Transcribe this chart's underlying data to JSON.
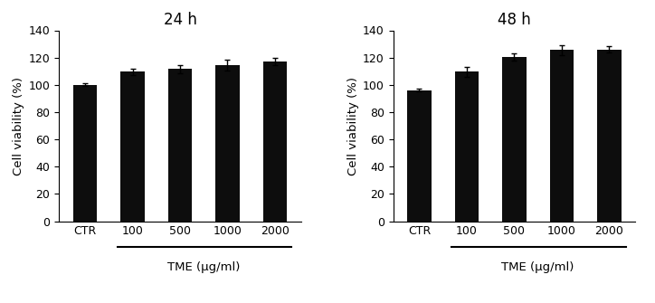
{
  "panel1": {
    "title": "24 h",
    "categories": [
      "CTR",
      "100",
      "500",
      "1000",
      "2000"
    ],
    "values": [
      100.0,
      109.5,
      111.5,
      114.5,
      117.0
    ],
    "errors": [
      1.0,
      2.5,
      3.0,
      4.0,
      2.5
    ],
    "bar_color": "#0d0d0d",
    "ylabel": "Cell viability (%)",
    "xlabel_tme": "TME (μg/ml)",
    "ylim": [
      0,
      140
    ],
    "yticks": [
      0,
      20,
      40,
      60,
      80,
      100,
      120,
      140
    ]
  },
  "panel2": {
    "title": "48 h",
    "categories": [
      "CTR",
      "100",
      "500",
      "1000",
      "2000"
    ],
    "values": [
      96.0,
      109.5,
      120.5,
      125.5,
      126.0
    ],
    "errors": [
      1.0,
      3.5,
      2.5,
      3.5,
      2.5
    ],
    "bar_color": "#0d0d0d",
    "ylabel": "Cell viability (%)",
    "xlabel_tme": "TME (μg/ml)",
    "ylim": [
      0,
      140
    ],
    "yticks": [
      0,
      20,
      40,
      60,
      80,
      100,
      120,
      140
    ]
  },
  "fig_width": 7.24,
  "fig_height": 3.35,
  "dpi": 100,
  "bar_width": 0.5,
  "capsize": 2.5,
  "elinewidth": 1.0,
  "ecapthick": 1.0
}
